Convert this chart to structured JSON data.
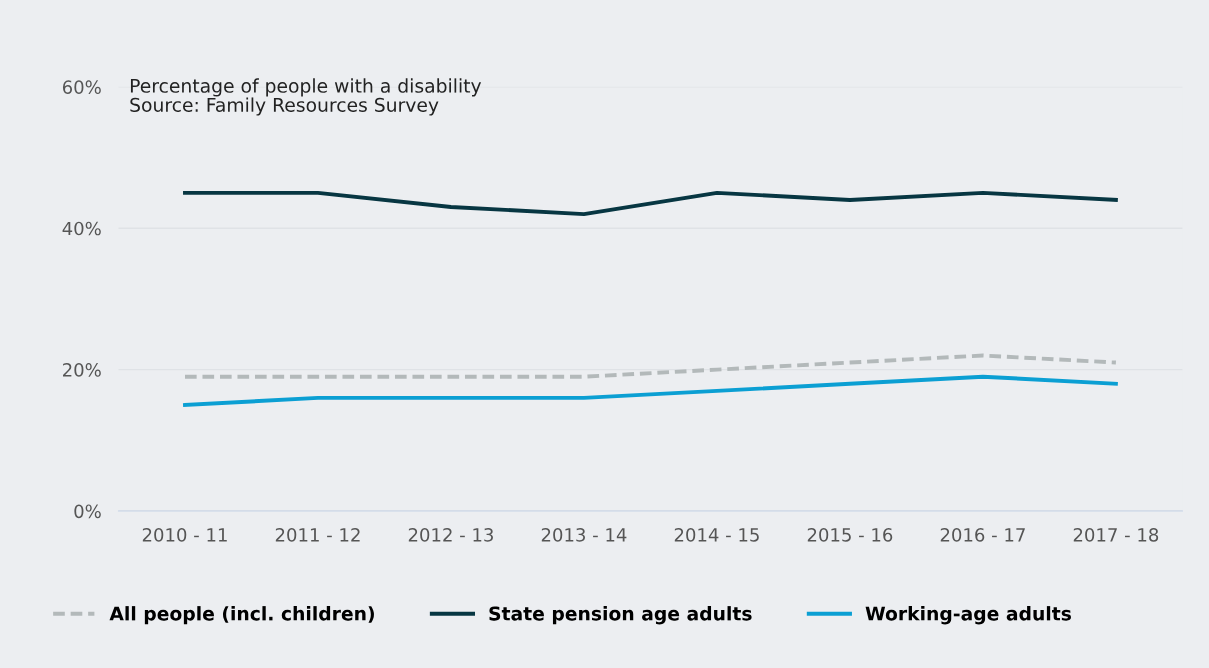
{
  "chart_data": {
    "type": "line",
    "categories": [
      "2010 - 11",
      "2011 - 12",
      "2012 - 13",
      "2013 - 14",
      "2014 - 15",
      "2015 - 16",
      "2016 - 17",
      "2017 - 18"
    ],
    "series": [
      {
        "name": "All people (incl. children)",
        "color": "#b3b9ba",
        "line_style": "dashed",
        "values": [
          19,
          19,
          19,
          19,
          20,
          21,
          22,
          21
        ]
      },
      {
        "name": "State pension age adults",
        "color": "#073642",
        "line_style": "solid",
        "values": [
          45,
          45,
          43,
          42,
          45,
          44,
          45,
          44
        ]
      },
      {
        "name": "Working-age adults",
        "color": "#0b9fd3",
        "line_style": "solid",
        "values": [
          15,
          16,
          16,
          16,
          17,
          18,
          19,
          18
        ]
      }
    ],
    "ylim": [
      0,
      60
    ],
    "yticks": [
      {
        "value": 0,
        "label": "0%"
      },
      {
        "value": 20,
        "label": "20%"
      },
      {
        "value": 40,
        "label": "40%"
      },
      {
        "value": 60,
        "label": "60%"
      }
    ],
    "annotations": [
      "Percentage of people with a disability",
      "Source: Family Resources Survey"
    ],
    "grid": "y",
    "legend": "bottom",
    "marker": "none"
  }
}
